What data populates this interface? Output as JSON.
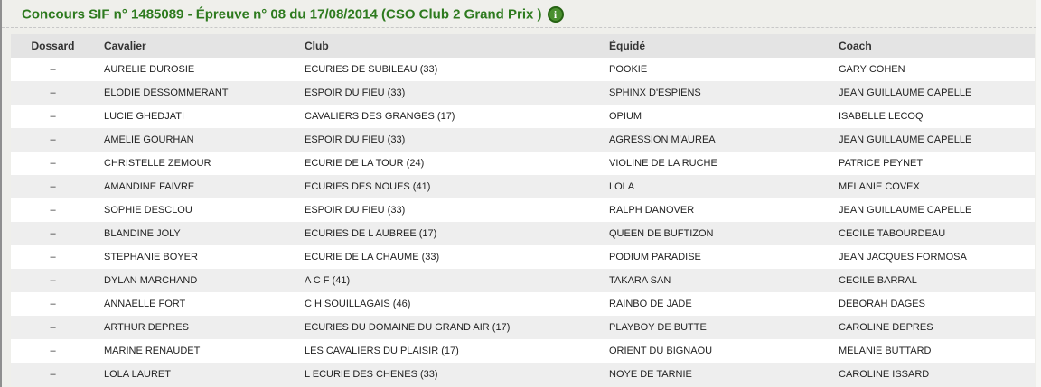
{
  "page": {
    "title": "Concours SIF n° 1485089 - Épreuve n° 08 du 17/08/2014 (CSO Club 2 Grand Prix )",
    "info_icon_glyph": "i",
    "colors": {
      "title_green": "#2d7a1e",
      "icon_fill_green": "#4a8f2f",
      "icon_ring_green": "#266313",
      "header_bg": "#e4e4e4",
      "row_alt_bg": "#eeeeee",
      "row_bg": "#ffffff",
      "page_bg": "#efefeb"
    }
  },
  "table": {
    "columns": [
      {
        "key": "dossard",
        "label": "Dossard"
      },
      {
        "key": "cavalier",
        "label": "Cavalier"
      },
      {
        "key": "club",
        "label": "Club"
      },
      {
        "key": "equide",
        "label": "Équidé"
      },
      {
        "key": "coach",
        "label": "Coach"
      }
    ],
    "rows": [
      {
        "dossard": "–",
        "cavalier": "AURELIE DUROSIE",
        "club": "ECURIES DE SUBILEAU (33)",
        "equide": "POOKIE",
        "coach": "GARY COHEN"
      },
      {
        "dossard": "–",
        "cavalier": "ELODIE DESSOMMERANT",
        "club": "ESPOIR DU FIEU (33)",
        "equide": "SPHINX D'ESPIENS",
        "coach": "JEAN GUILLAUME CAPELLE"
      },
      {
        "dossard": "–",
        "cavalier": "LUCIE GHEDJATI",
        "club": "CAVALIERS DES GRANGES (17)",
        "equide": "OPIUM",
        "coach": "ISABELLE LECOQ"
      },
      {
        "dossard": "–",
        "cavalier": "AMELIE GOURHAN",
        "club": "ESPOIR DU FIEU (33)",
        "equide": "AGRESSION M'AUREA",
        "coach": "JEAN GUILLAUME CAPELLE"
      },
      {
        "dossard": "–",
        "cavalier": "CHRISTELLE ZEMOUR",
        "club": "ECURIE DE LA TOUR (24)",
        "equide": "VIOLINE DE LA RUCHE",
        "coach": "PATRICE PEYNET"
      },
      {
        "dossard": "–",
        "cavalier": "AMANDINE FAIVRE",
        "club": "ECURIES DES NOUES (41)",
        "equide": "LOLA",
        "coach": "MELANIE COVEX"
      },
      {
        "dossard": "–",
        "cavalier": "SOPHIE DESCLOU",
        "club": "ESPOIR DU FIEU (33)",
        "equide": "RALPH DANOVER",
        "coach": "JEAN GUILLAUME CAPELLE"
      },
      {
        "dossard": "–",
        "cavalier": "BLANDINE JOLY",
        "club": "ECURIES DE L AUBREE (17)",
        "equide": "QUEEN DE BUFTIZON",
        "coach": "CECILE TABOURDEAU"
      },
      {
        "dossard": "–",
        "cavalier": "STEPHANIE BOYER",
        "club": "ECURIE DE LA CHAUME (33)",
        "equide": "PODIUM PARADISE",
        "coach": "JEAN JACQUES FORMOSA"
      },
      {
        "dossard": "–",
        "cavalier": "DYLAN MARCHAND",
        "club": "A C F (41)",
        "equide": "TAKARA SAN",
        "coach": "CECILE BARRAL"
      },
      {
        "dossard": "–",
        "cavalier": "ANNAELLE FORT",
        "club": "C H SOUILLAGAIS (46)",
        "equide": "RAINBO DE JADE",
        "coach": "DEBORAH DAGES"
      },
      {
        "dossard": "–",
        "cavalier": "ARTHUR DEPRES",
        "club": "ECURIES DU DOMAINE DU GRAND AIR (17)",
        "equide": "PLAYBOY DE BUTTE",
        "coach": "CAROLINE DEPRES"
      },
      {
        "dossard": "–",
        "cavalier": "MARINE RENAUDET",
        "club": "LES CAVALIERS DU PLAISIR (17)",
        "equide": "ORIENT DU BIGNAOU",
        "coach": "MELANIE BUTTARD"
      },
      {
        "dossard": "–",
        "cavalier": "LOLA LAURET",
        "club": "L ECURIE DES CHENES (33)",
        "equide": "NOYE DE TARNIE",
        "coach": "CAROLINE ISSARD"
      }
    ]
  }
}
